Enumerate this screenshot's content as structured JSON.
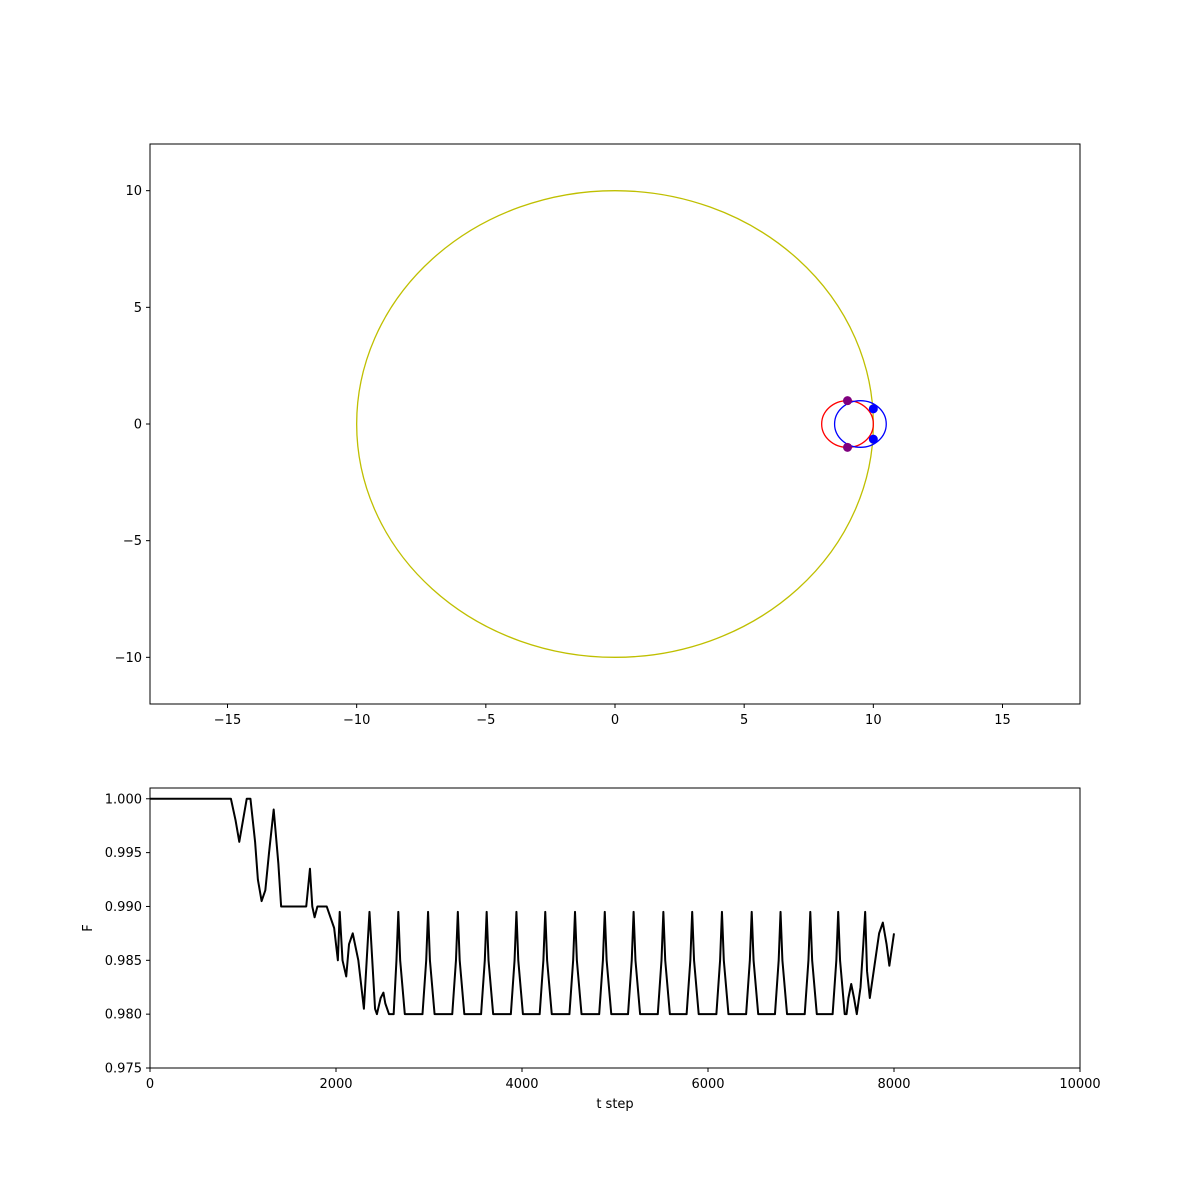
{
  "chart_data": [
    {
      "type": "line",
      "title": "",
      "xlabel": "",
      "ylabel": "",
      "xlim": [
        -18,
        18
      ],
      "ylim": [
        -12,
        12
      ],
      "xticks": [
        -15,
        -10,
        -5,
        0,
        5,
        10,
        15
      ],
      "xtick_labels": [
        "−15",
        "−10",
        "−5",
        "0",
        "5",
        "10",
        "15"
      ],
      "yticks": [
        -10,
        -5,
        0,
        5,
        10
      ],
      "ytick_labels": [
        "−10",
        "−5",
        "0",
        "5",
        "10"
      ],
      "grid": false,
      "orbits": [
        {
          "cx": 0,
          "cy": 0,
          "r": 10,
          "color": "#bfbf00"
        },
        {
          "cx": 9,
          "cy": 0,
          "r": 1,
          "color": "#ff0000"
        },
        {
          "cx": 9.5,
          "cy": 0,
          "r": 1,
          "color": "#0000ff"
        }
      ],
      "bodies": [
        {
          "x": 9,
          "y": 1,
          "color": "#7f007f"
        },
        {
          "x": 9,
          "y": -1,
          "color": "#7f007f"
        },
        {
          "x": 10,
          "y": 0.65,
          "color": "#0000ff"
        },
        {
          "x": 10,
          "y": -0.65,
          "color": "#0000ff"
        }
      ]
    },
    {
      "type": "line",
      "title": "",
      "xlabel": "t step",
      "ylabel": "F",
      "xlim": [
        0,
        10000
      ],
      "ylim": [
        0.975,
        1.001
      ],
      "xticks": [
        0,
        2000,
        4000,
        6000,
        8000,
        10000
      ],
      "xtick_labels": [
        "0",
        "2000",
        "4000",
        "6000",
        "8000",
        "10000"
      ],
      "yticks": [
        0.975,
        0.98,
        0.985,
        0.99,
        0.995,
        1.0
      ],
      "ytick_labels": [
        "0.975",
        "0.980",
        "0.985",
        "0.990",
        "0.995",
        "1.000"
      ],
      "grid": false,
      "series": [
        {
          "color": "#000000",
          "x": [
            0,
            870,
            920,
            960,
            1000,
            1040,
            1080,
            1130,
            1160,
            1200,
            1240,
            1280,
            1330,
            1380,
            1410,
            1440,
            1490,
            1680,
            1720,
            1745,
            1770,
            1800,
            1900,
            1980,
            2020,
            2040,
            2070,
            2110,
            2140,
            2180,
            2240,
            2300,
            2330,
            2360,
            2390,
            2420,
            2440,
            2480,
            2510,
            2530,
            2570,
            2620,
            2650,
            2670,
            2690,
            2740,
            2930,
            2970,
            2990,
            3010,
            3060,
            3250,
            3290,
            3310,
            3330,
            3380,
            3560,
            3600,
            3620,
            3640,
            3690,
            3880,
            3920,
            3940,
            3960,
            4010,
            4190,
            4230,
            4250,
            4270,
            4320,
            4510,
            4550,
            4570,
            4590,
            4640,
            4830,
            4870,
            4890,
            4910,
            4960,
            5140,
            5180,
            5200,
            5220,
            5270,
            5460,
            5500,
            5520,
            5540,
            5590,
            5770,
            5810,
            5830,
            5850,
            5900,
            6090,
            6130,
            6150,
            6170,
            6220,
            6410,
            6450,
            6470,
            6490,
            6540,
            6720,
            6760,
            6780,
            6800,
            6850,
            7040,
            7080,
            7100,
            7120,
            7170,
            7340,
            7380,
            7400,
            7420,
            7470,
            7490,
            7510,
            7540,
            7570,
            7600,
            7640,
            7670,
            7690,
            7710,
            7740,
            7790,
            7840,
            7880,
            7920,
            7950,
            8000
          ],
          "y": [
            1.0,
            1.0,
            0.998,
            0.996,
            0.998,
            1.0,
            1.0,
            0.996,
            0.9925,
            0.9905,
            0.9915,
            0.995,
            0.999,
            0.994,
            0.99,
            0.99,
            0.99,
            0.99,
            0.9935,
            0.99,
            0.989,
            0.99,
            0.99,
            0.988,
            0.985,
            0.9895,
            0.985,
            0.9835,
            0.9865,
            0.9875,
            0.985,
            0.9805,
            0.985,
            0.9895,
            0.985,
            0.9805,
            0.98,
            0.9815,
            0.982,
            0.981,
            0.98,
            0.98,
            0.985,
            0.9895,
            0.985,
            0.98,
            0.98,
            0.985,
            0.9895,
            0.985,
            0.98,
            0.98,
            0.985,
            0.9895,
            0.985,
            0.98,
            0.98,
            0.985,
            0.9895,
            0.985,
            0.98,
            0.98,
            0.985,
            0.9895,
            0.985,
            0.98,
            0.98,
            0.985,
            0.9895,
            0.985,
            0.98,
            0.98,
            0.985,
            0.9895,
            0.985,
            0.98,
            0.98,
            0.985,
            0.9895,
            0.985,
            0.98,
            0.98,
            0.985,
            0.9895,
            0.985,
            0.98,
            0.98,
            0.985,
            0.9895,
            0.985,
            0.98,
            0.98,
            0.985,
            0.9895,
            0.985,
            0.98,
            0.98,
            0.985,
            0.9895,
            0.985,
            0.98,
            0.98,
            0.985,
            0.9895,
            0.985,
            0.98,
            0.98,
            0.985,
            0.9895,
            0.985,
            0.98,
            0.98,
            0.985,
            0.9895,
            0.985,
            0.98,
            0.98,
            0.985,
            0.9895,
            0.985,
            0.98,
            0.98,
            0.9815,
            0.9828,
            0.9815,
            0.98,
            0.9825,
            0.9865,
            0.9895,
            0.984,
            0.9815,
            0.9845,
            0.9875,
            0.9885,
            0.9865,
            0.9845,
            0.9875
          ]
        }
      ]
    }
  ]
}
